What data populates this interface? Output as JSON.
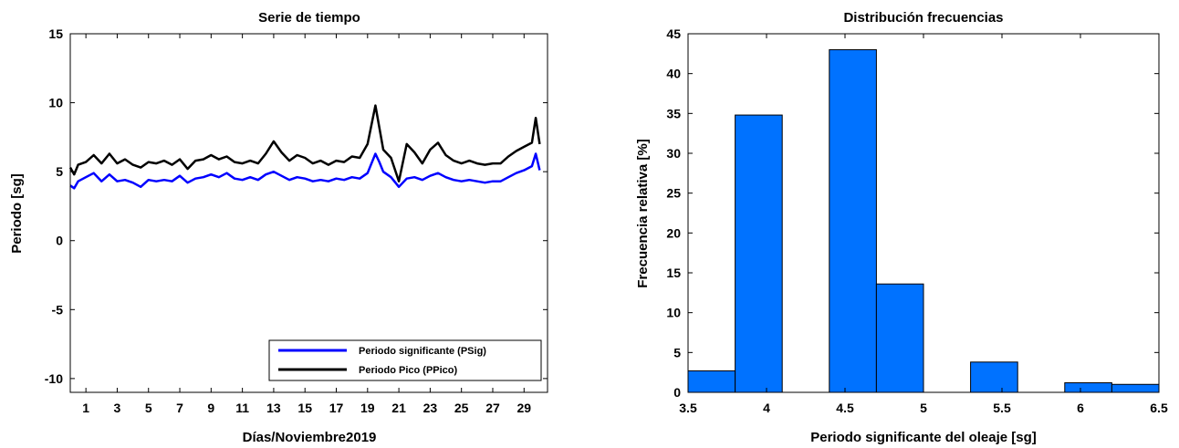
{
  "chart_data": [
    {
      "type": "line",
      "title": "Serie de tiempo",
      "xlabel": "Días/Noviembre2019",
      "ylabel": "Periodo [sg]",
      "xlim": [
        0,
        30.5
      ],
      "ylim": [
        -11,
        15
      ],
      "xticks": [
        1,
        3,
        5,
        7,
        9,
        11,
        13,
        15,
        17,
        19,
        21,
        23,
        25,
        27,
        29
      ],
      "yticks": [
        -10,
        -5,
        0,
        5,
        10,
        15
      ],
      "legend_position": "bottom-right",
      "series": [
        {
          "name": "Periodo significante (PSig)",
          "color": "#0000ff",
          "x": [
            0.0,
            0.25,
            0.5,
            1.0,
            1.5,
            2.0,
            2.5,
            3.0,
            3.5,
            4.0,
            4.5,
            5.0,
            5.5,
            6.0,
            6.5,
            7.0,
            7.5,
            8.0,
            8.5,
            9.0,
            9.5,
            10.0,
            10.5,
            11.0,
            11.5,
            12.0,
            12.5,
            13.0,
            13.5,
            14.0,
            14.5,
            15.0,
            15.5,
            16.0,
            16.5,
            17.0,
            17.5,
            18.0,
            18.5,
            19.0,
            19.5,
            19.75,
            20.0,
            20.5,
            21.0,
            21.5,
            22.0,
            22.5,
            23.0,
            23.5,
            24.0,
            24.5,
            25.0,
            25.5,
            26.0,
            26.5,
            27.0,
            27.5,
            28.0,
            28.5,
            29.0,
            29.5,
            29.75,
            30.0
          ],
          "values": [
            4.0,
            3.8,
            4.3,
            4.6,
            4.9,
            4.3,
            4.8,
            4.3,
            4.4,
            4.2,
            3.9,
            4.4,
            4.3,
            4.4,
            4.3,
            4.7,
            4.2,
            4.5,
            4.6,
            4.8,
            4.6,
            4.9,
            4.5,
            4.4,
            4.6,
            4.4,
            4.8,
            5.0,
            4.7,
            4.4,
            4.6,
            4.5,
            4.3,
            4.4,
            4.3,
            4.5,
            4.4,
            4.6,
            4.5,
            4.9,
            6.3,
            5.7,
            5.0,
            4.6,
            3.9,
            4.5,
            4.6,
            4.4,
            4.7,
            4.9,
            4.6,
            4.4,
            4.3,
            4.4,
            4.3,
            4.2,
            4.3,
            4.3,
            4.6,
            4.9,
            5.1,
            5.4,
            6.3,
            5.1
          ]
        },
        {
          "name": "Periodo Pico (PPico)",
          "color": "#000000",
          "x": [
            0.0,
            0.25,
            0.5,
            1.0,
            1.5,
            2.0,
            2.5,
            3.0,
            3.5,
            4.0,
            4.5,
            5.0,
            5.5,
            6.0,
            6.5,
            7.0,
            7.5,
            8.0,
            8.5,
            9.0,
            9.5,
            10.0,
            10.5,
            11.0,
            11.5,
            12.0,
            12.5,
            13.0,
            13.5,
            14.0,
            14.5,
            15.0,
            15.5,
            16.0,
            16.5,
            17.0,
            17.5,
            18.0,
            18.5,
            19.0,
            19.5,
            19.75,
            20.0,
            20.5,
            21.0,
            21.5,
            22.0,
            22.5,
            23.0,
            23.5,
            24.0,
            24.5,
            25.0,
            25.5,
            26.0,
            26.5,
            27.0,
            27.5,
            28.0,
            28.5,
            29.0,
            29.5,
            29.75,
            30.0
          ],
          "values": [
            5.3,
            4.8,
            5.5,
            5.7,
            6.2,
            5.6,
            6.3,
            5.6,
            5.9,
            5.5,
            5.3,
            5.7,
            5.6,
            5.8,
            5.5,
            5.9,
            5.2,
            5.8,
            5.9,
            6.2,
            5.9,
            6.1,
            5.7,
            5.6,
            5.8,
            5.6,
            6.3,
            7.2,
            6.4,
            5.8,
            6.2,
            6.0,
            5.6,
            5.8,
            5.5,
            5.8,
            5.7,
            6.1,
            6.0,
            7.0,
            9.8,
            8.2,
            6.6,
            6.0,
            4.3,
            7.0,
            6.4,
            5.6,
            6.6,
            7.1,
            6.2,
            5.8,
            5.6,
            5.8,
            5.6,
            5.5,
            5.6,
            5.6,
            6.1,
            6.5,
            6.8,
            7.1,
            8.9,
            7.0
          ]
        }
      ]
    },
    {
      "type": "bar",
      "title": "Distribución frecuencias",
      "xlabel": "Periodo significante del oleaje [sg]",
      "ylabel": "Frecuencia relativa [%]",
      "xlim": [
        3.5,
        6.5
      ],
      "ylim": [
        0,
        45
      ],
      "xticks": [
        "3.5",
        "4",
        "4.5",
        "5",
        "5.5",
        "6",
        "6.5"
      ],
      "yticks": [
        "0",
        "5",
        "10",
        "15",
        "20",
        "25",
        "30",
        "35",
        "40",
        "45"
      ],
      "bar_color": "#0072ff",
      "bins": [
        {
          "from": 3.5,
          "to": 3.8,
          "value": 2.7
        },
        {
          "from": 3.8,
          "to": 4.1,
          "value": 34.8
        },
        {
          "from": 4.1,
          "to": 4.4,
          "value": 0
        },
        {
          "from": 4.4,
          "to": 4.7,
          "value": 43.0
        },
        {
          "from": 4.7,
          "to": 5.0,
          "value": 13.6
        },
        {
          "from": 5.0,
          "to": 5.3,
          "value": 0
        },
        {
          "from": 5.3,
          "to": 5.6,
          "value": 3.8
        },
        {
          "from": 5.6,
          "to": 5.9,
          "value": 0
        },
        {
          "from": 5.9,
          "to": 6.2,
          "value": 1.2
        },
        {
          "from": 6.2,
          "to": 6.5,
          "value": 1.0
        }
      ]
    }
  ]
}
